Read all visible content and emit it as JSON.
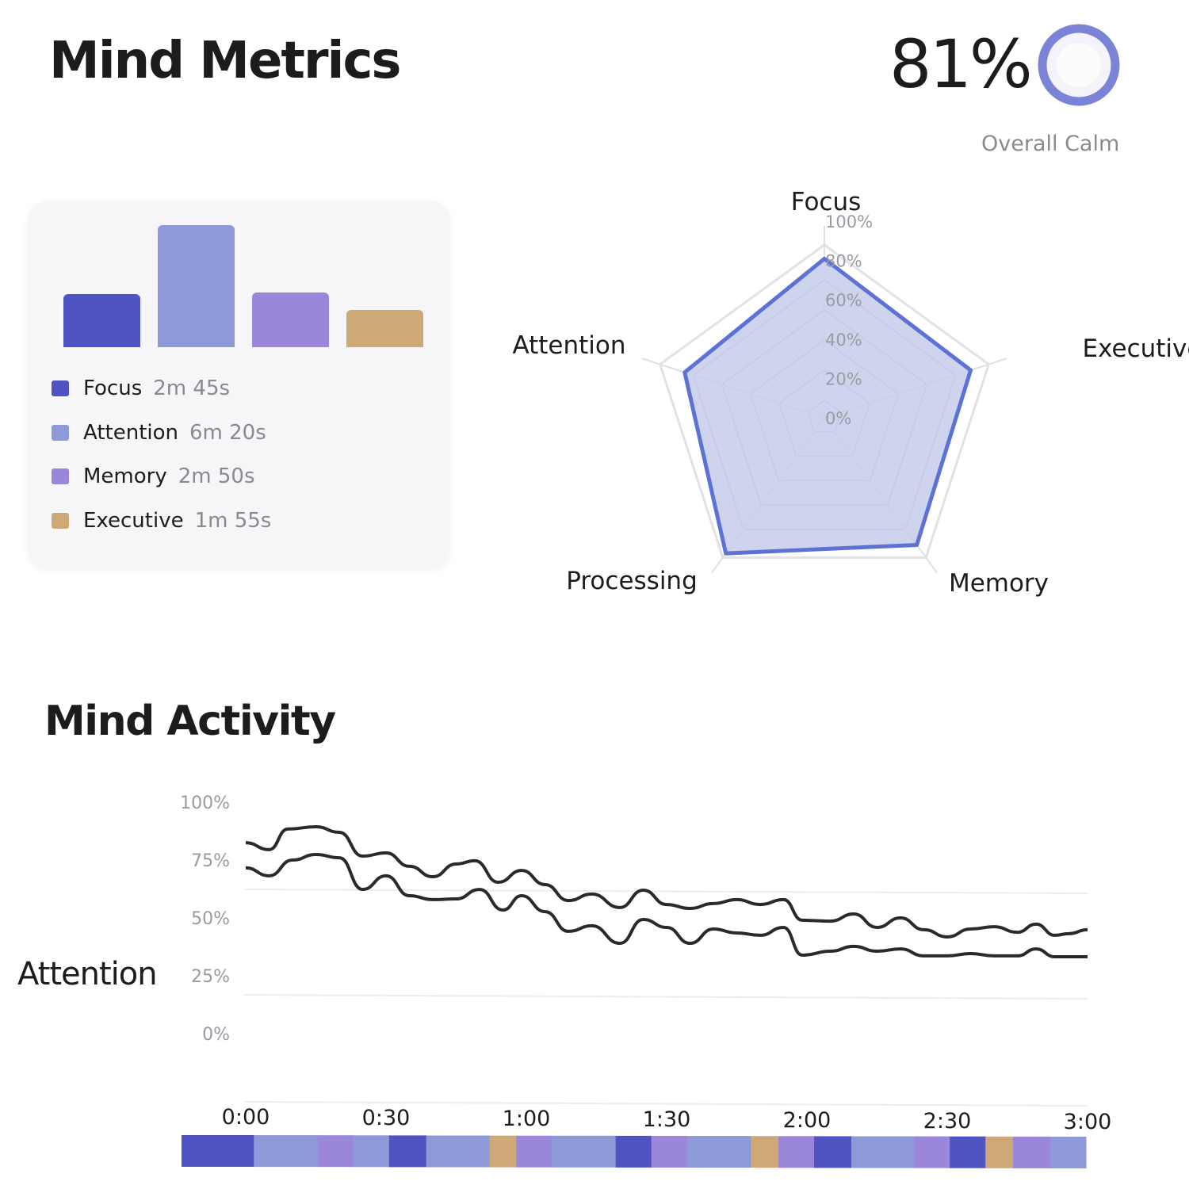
{
  "header": {
    "title": "Mind Metrics",
    "calm_value": "81%",
    "calm_label": "Overall Calm",
    "calm_percent": 81
  },
  "colors": {
    "Focus": "#5053c2",
    "Attention": "#8e9ad8",
    "Memory": "#9a87dc",
    "Executive": "#cfa878",
    "ring": "#7b83d6",
    "radar_stroke": "#5e72d6",
    "radar_fill": "#c7cdeb"
  },
  "chart_data": [
    {
      "type": "bar",
      "categories": [
        "Focus",
        "Attention",
        "Memory",
        "Executive"
      ],
      "values_seconds": [
        165,
        380,
        170,
        115
      ],
      "legend": [
        {
          "label": "Focus",
          "duration": "2m 45s"
        },
        {
          "label": "Attention",
          "duration": "6m 20s"
        },
        {
          "label": "Memory",
          "duration": "2m 50s"
        },
        {
          "label": "Executive",
          "duration": "1m 55s"
        }
      ]
    },
    {
      "type": "radar",
      "axes": [
        "Focus",
        "Executive",
        "Memory",
        "Processing",
        "Attention"
      ],
      "values": [
        92,
        89,
        91,
        97,
        85
      ],
      "tick_labels": [
        "0%",
        "20%",
        "40%",
        "60%",
        "80%",
        "100%"
      ],
      "range": [
        0,
        100
      ]
    },
    {
      "type": "line",
      "ylabel": "Attention",
      "y_ticks": [
        "100%",
        "75%",
        "50%",
        "25%",
        "0%"
      ],
      "ylim": [
        0,
        100
      ],
      "x_ticks": [
        "0:00",
        "0:30",
        "1:00",
        "1:30",
        "2:00",
        "2:30",
        "3:00"
      ],
      "xlim_seconds": [
        0,
        180
      ],
      "series": [
        {
          "points": [
            [
              0,
              82.5
            ],
            [
              5,
              79.5
            ],
            [
              9,
              88.4
            ],
            [
              15,
              89.4
            ],
            [
              20,
              87
            ],
            [
              25,
              76.7
            ],
            [
              30,
              78.1
            ],
            [
              35,
              72.3
            ],
            [
              40,
              67.8
            ],
            [
              45,
              73.3
            ],
            [
              49,
              74.7
            ],
            [
              54,
              65.4
            ],
            [
              59,
              70.5
            ],
            [
              64,
              64.4
            ],
            [
              69,
              57.5
            ],
            [
              74,
              60.3
            ],
            [
              80,
              54.5
            ],
            [
              85,
              62
            ],
            [
              90,
              55.8
            ],
            [
              95,
              54.1
            ],
            [
              100,
              56.2
            ],
            [
              105,
              57.9
            ],
            [
              110,
              55.8
            ],
            [
              115,
              57.9
            ],
            [
              119,
              49
            ],
            [
              125,
              48.6
            ],
            [
              130,
              51.7
            ],
            [
              135,
              45.9
            ],
            [
              140,
              50
            ],
            [
              145,
              44.9
            ],
            [
              150,
              41.8
            ],
            [
              155,
              45.2
            ],
            [
              160,
              46.2
            ],
            [
              165,
              43.8
            ],
            [
              169,
              47.3
            ],
            [
              173,
              42.5
            ],
            [
              176,
              43.2
            ],
            [
              180,
              44.9
            ]
          ]
        },
        {
          "points": [
            [
              0,
              71.6
            ],
            [
              5,
              68.2
            ],
            [
              10,
              75
            ],
            [
              15,
              77.4
            ],
            [
              20,
              76
            ],
            [
              25,
              62.3
            ],
            [
              30,
              68.2
            ],
            [
              35,
              59.6
            ],
            [
              40,
              57.9
            ],
            [
              45,
              58.2
            ],
            [
              50,
              62.3
            ],
            [
              55,
              53.4
            ],
            [
              59,
              59.6
            ],
            [
              64,
              52.7
            ],
            [
              69,
              44.2
            ],
            [
              74,
              46.6
            ],
            [
              80,
              39
            ],
            [
              85,
              49.3
            ],
            [
              90,
              45.9
            ],
            [
              95,
              39
            ],
            [
              100,
              45.2
            ],
            [
              105,
              43.5
            ],
            [
              110,
              42.5
            ],
            [
              115,
              45.9
            ],
            [
              119,
              33.9
            ],
            [
              125,
              35.6
            ],
            [
              130,
              37.7
            ],
            [
              135,
              35.6
            ],
            [
              140,
              36.6
            ],
            [
              145,
              33.6
            ],
            [
              150,
              33.6
            ],
            [
              155,
              34.6
            ],
            [
              160,
              33.6
            ],
            [
              165,
              33.6
            ],
            [
              169,
              36.6
            ],
            [
              173,
              33.2
            ],
            [
              180,
              33.2
            ]
          ]
        }
      ],
      "timeline": [
        [
          "Focus",
          14.4
        ],
        [
          "Attention",
          12.7
        ],
        [
          "Memory",
          7.1
        ],
        [
          "Attention",
          7.1
        ],
        [
          "Focus",
          7.4
        ],
        [
          "Attention",
          12.6
        ],
        [
          "Executive",
          5.3
        ],
        [
          "Memory",
          7.1
        ],
        [
          "Attention",
          12.7
        ],
        [
          "Focus",
          7.1
        ],
        [
          "Memory",
          7.1
        ],
        [
          "Attention",
          12.7
        ],
        [
          "Executive",
          5.5
        ],
        [
          "Memory",
          7.1
        ],
        [
          "Focus",
          7.4
        ],
        [
          "Attention",
          12.5
        ],
        [
          "Memory",
          7.1
        ],
        [
          "Focus",
          7.1
        ],
        [
          "Executive",
          5.5
        ],
        [
          "Memory",
          7.4
        ],
        [
          "Attention",
          7.1
        ]
      ]
    }
  ],
  "activity": {
    "title": "Mind Activity"
  }
}
